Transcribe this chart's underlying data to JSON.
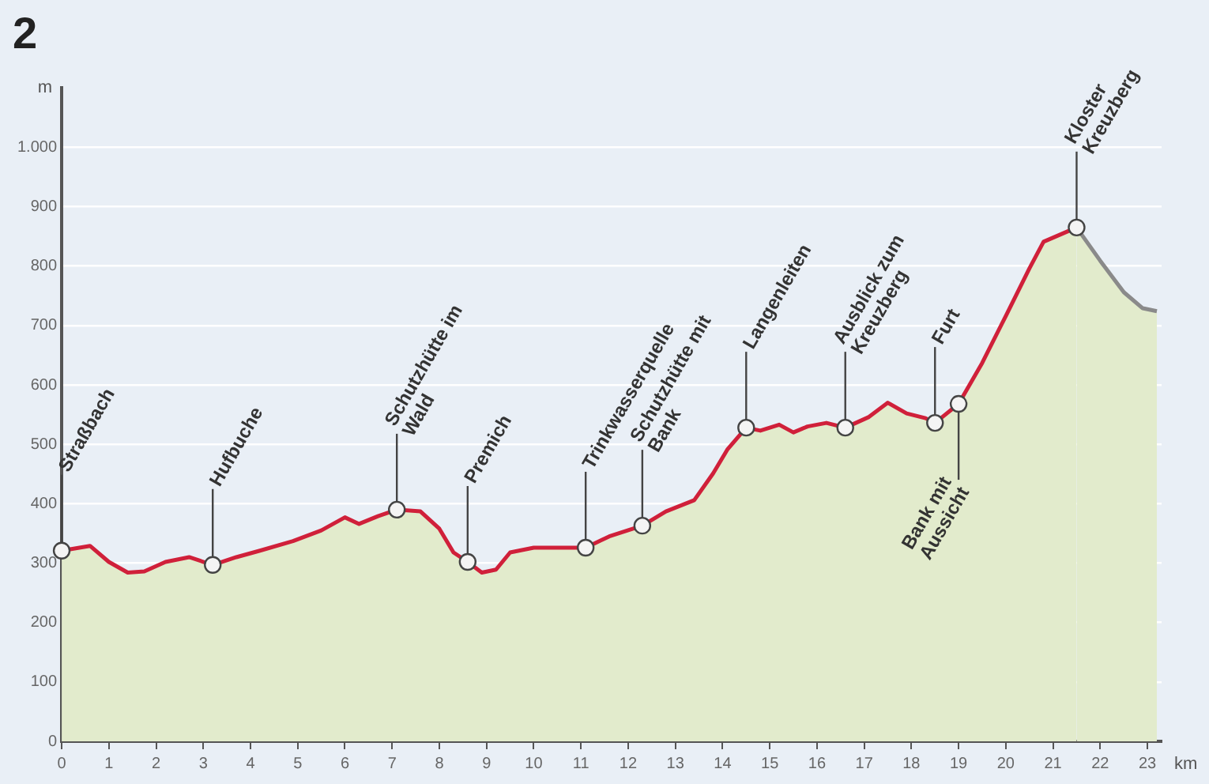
{
  "chart_data": {
    "type": "area",
    "title": "2",
    "xlabel": "km",
    "ylabel": "m",
    "xlim": [
      0,
      23.3
    ],
    "xticks": [
      0,
      1,
      2,
      3,
      4,
      5,
      6,
      7,
      8,
      9,
      10,
      11,
      12,
      13,
      14,
      15,
      16,
      17,
      18,
      19,
      20,
      21,
      22,
      23
    ],
    "ylim": [
      0,
      1100
    ],
    "yticks": [
      0,
      100,
      200,
      300,
      400,
      500,
      600,
      700,
      800,
      900,
      {
        "value": 1000,
        "label": "1.000"
      }
    ],
    "grid": "y",
    "legend": false,
    "series": [
      {
        "color": "#d0203a",
        "x": [
          0,
          0.6,
          1.0,
          1.4,
          1.75,
          2.2,
          2.7,
          3.2,
          3.7,
          4.2,
          4.9,
          5.5,
          6.0,
          6.3,
          6.7,
          7.1,
          7.6,
          8.0,
          8.3,
          8.6,
          8.9,
          9.2,
          9.5,
          10.0,
          10.5,
          11.1,
          11.6,
          12.3,
          12.8,
          13.4,
          13.8,
          14.1,
          14.5,
          14.8,
          15.2,
          15.5,
          15.8,
          16.2,
          16.6,
          17.1,
          17.5,
          17.9,
          18.3,
          18.5,
          19.0,
          19.5,
          20.0,
          20.5,
          20.8,
          21.5
        ],
        "values": [
          321,
          329,
          302,
          284,
          286,
          302,
          310,
          297,
          310,
          321,
          337,
          355,
          377,
          366,
          379,
          390,
          387,
          358,
          318,
          302,
          284,
          289,
          318,
          326,
          326,
          326,
          345,
          363,
          387,
          406,
          451,
          491,
          528,
          523,
          533,
          520,
          530,
          536,
          528,
          546,
          570,
          552,
          544,
          536,
          568,
          637,
          716,
          796,
          841,
          865
        ]
      },
      {
        "color": "#8a8a8a",
        "x": [
          21.5,
          22.0,
          22.5,
          22.9,
          23.2
        ],
        "values": [
          865,
          809,
          756,
          729,
          724
        ]
      }
    ],
    "annotations": [
      {
        "text": "Straßbach",
        "x": 0,
        "y": 321
      },
      {
        "text": "Hufbuche",
        "x": 3.2,
        "y": 297
      },
      {
        "text": "Schutzhütte im Wald",
        "x": 7.1,
        "y": 390
      },
      {
        "text": "Premich",
        "x": 8.6,
        "y": 302
      },
      {
        "text": "Trinkwasserquelle",
        "x": 11.1,
        "y": 326
      },
      {
        "text": "Schutzhütte mit Bank",
        "x": 12.3,
        "y": 363
      },
      {
        "text": "Langenleiten",
        "x": 14.5,
        "y": 528
      },
      {
        "text": "Ausblick zum Kreuzberg",
        "x": 16.6,
        "y": 528
      },
      {
        "text": "Furt",
        "x": 18.5,
        "y": 536
      },
      {
        "text": "Bank mit Aussicht",
        "x": 19.0,
        "y": 568
      },
      {
        "text": "Kloster Kreuzberg",
        "x": 21.5,
        "y": 865
      }
    ]
  }
}
